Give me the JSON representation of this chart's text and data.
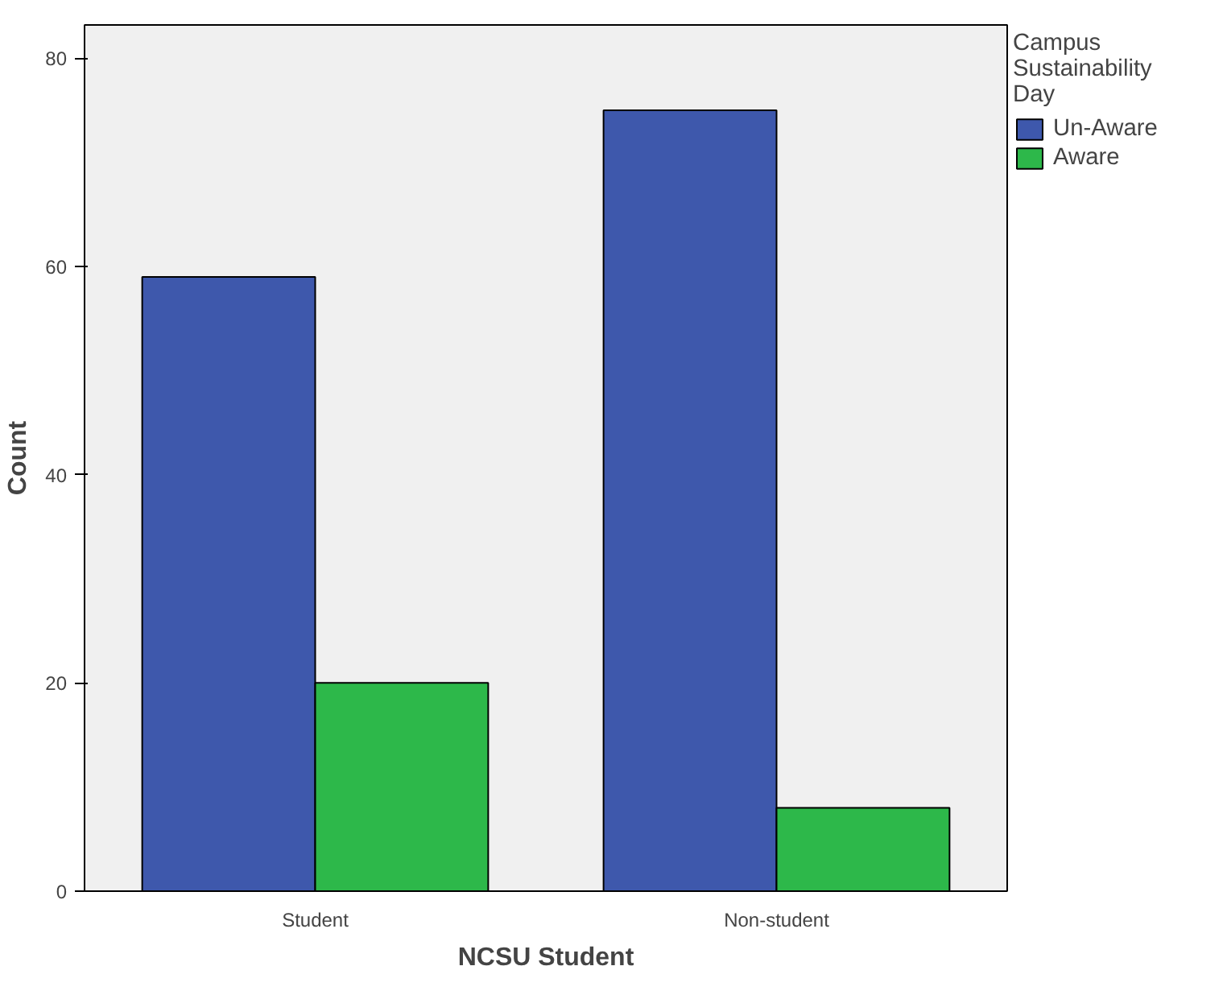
{
  "chart_data": {
    "type": "bar",
    "xlabel": "NCSU Student",
    "ylabel": "Count",
    "legend_title": "Campus Sustainability Day",
    "categories": [
      "Student",
      "Non-student"
    ],
    "series": [
      {
        "name": "Un-Aware",
        "color": "#3e58ac",
        "values": [
          59,
          75
        ]
      },
      {
        "name": "Aware",
        "color": "#2db84a",
        "values": [
          20,
          8
        ]
      }
    ],
    "ylim": [
      0,
      83.2
    ],
    "yticks": [
      0,
      20,
      40,
      60,
      80
    ],
    "grid": false,
    "legend": "right"
  }
}
